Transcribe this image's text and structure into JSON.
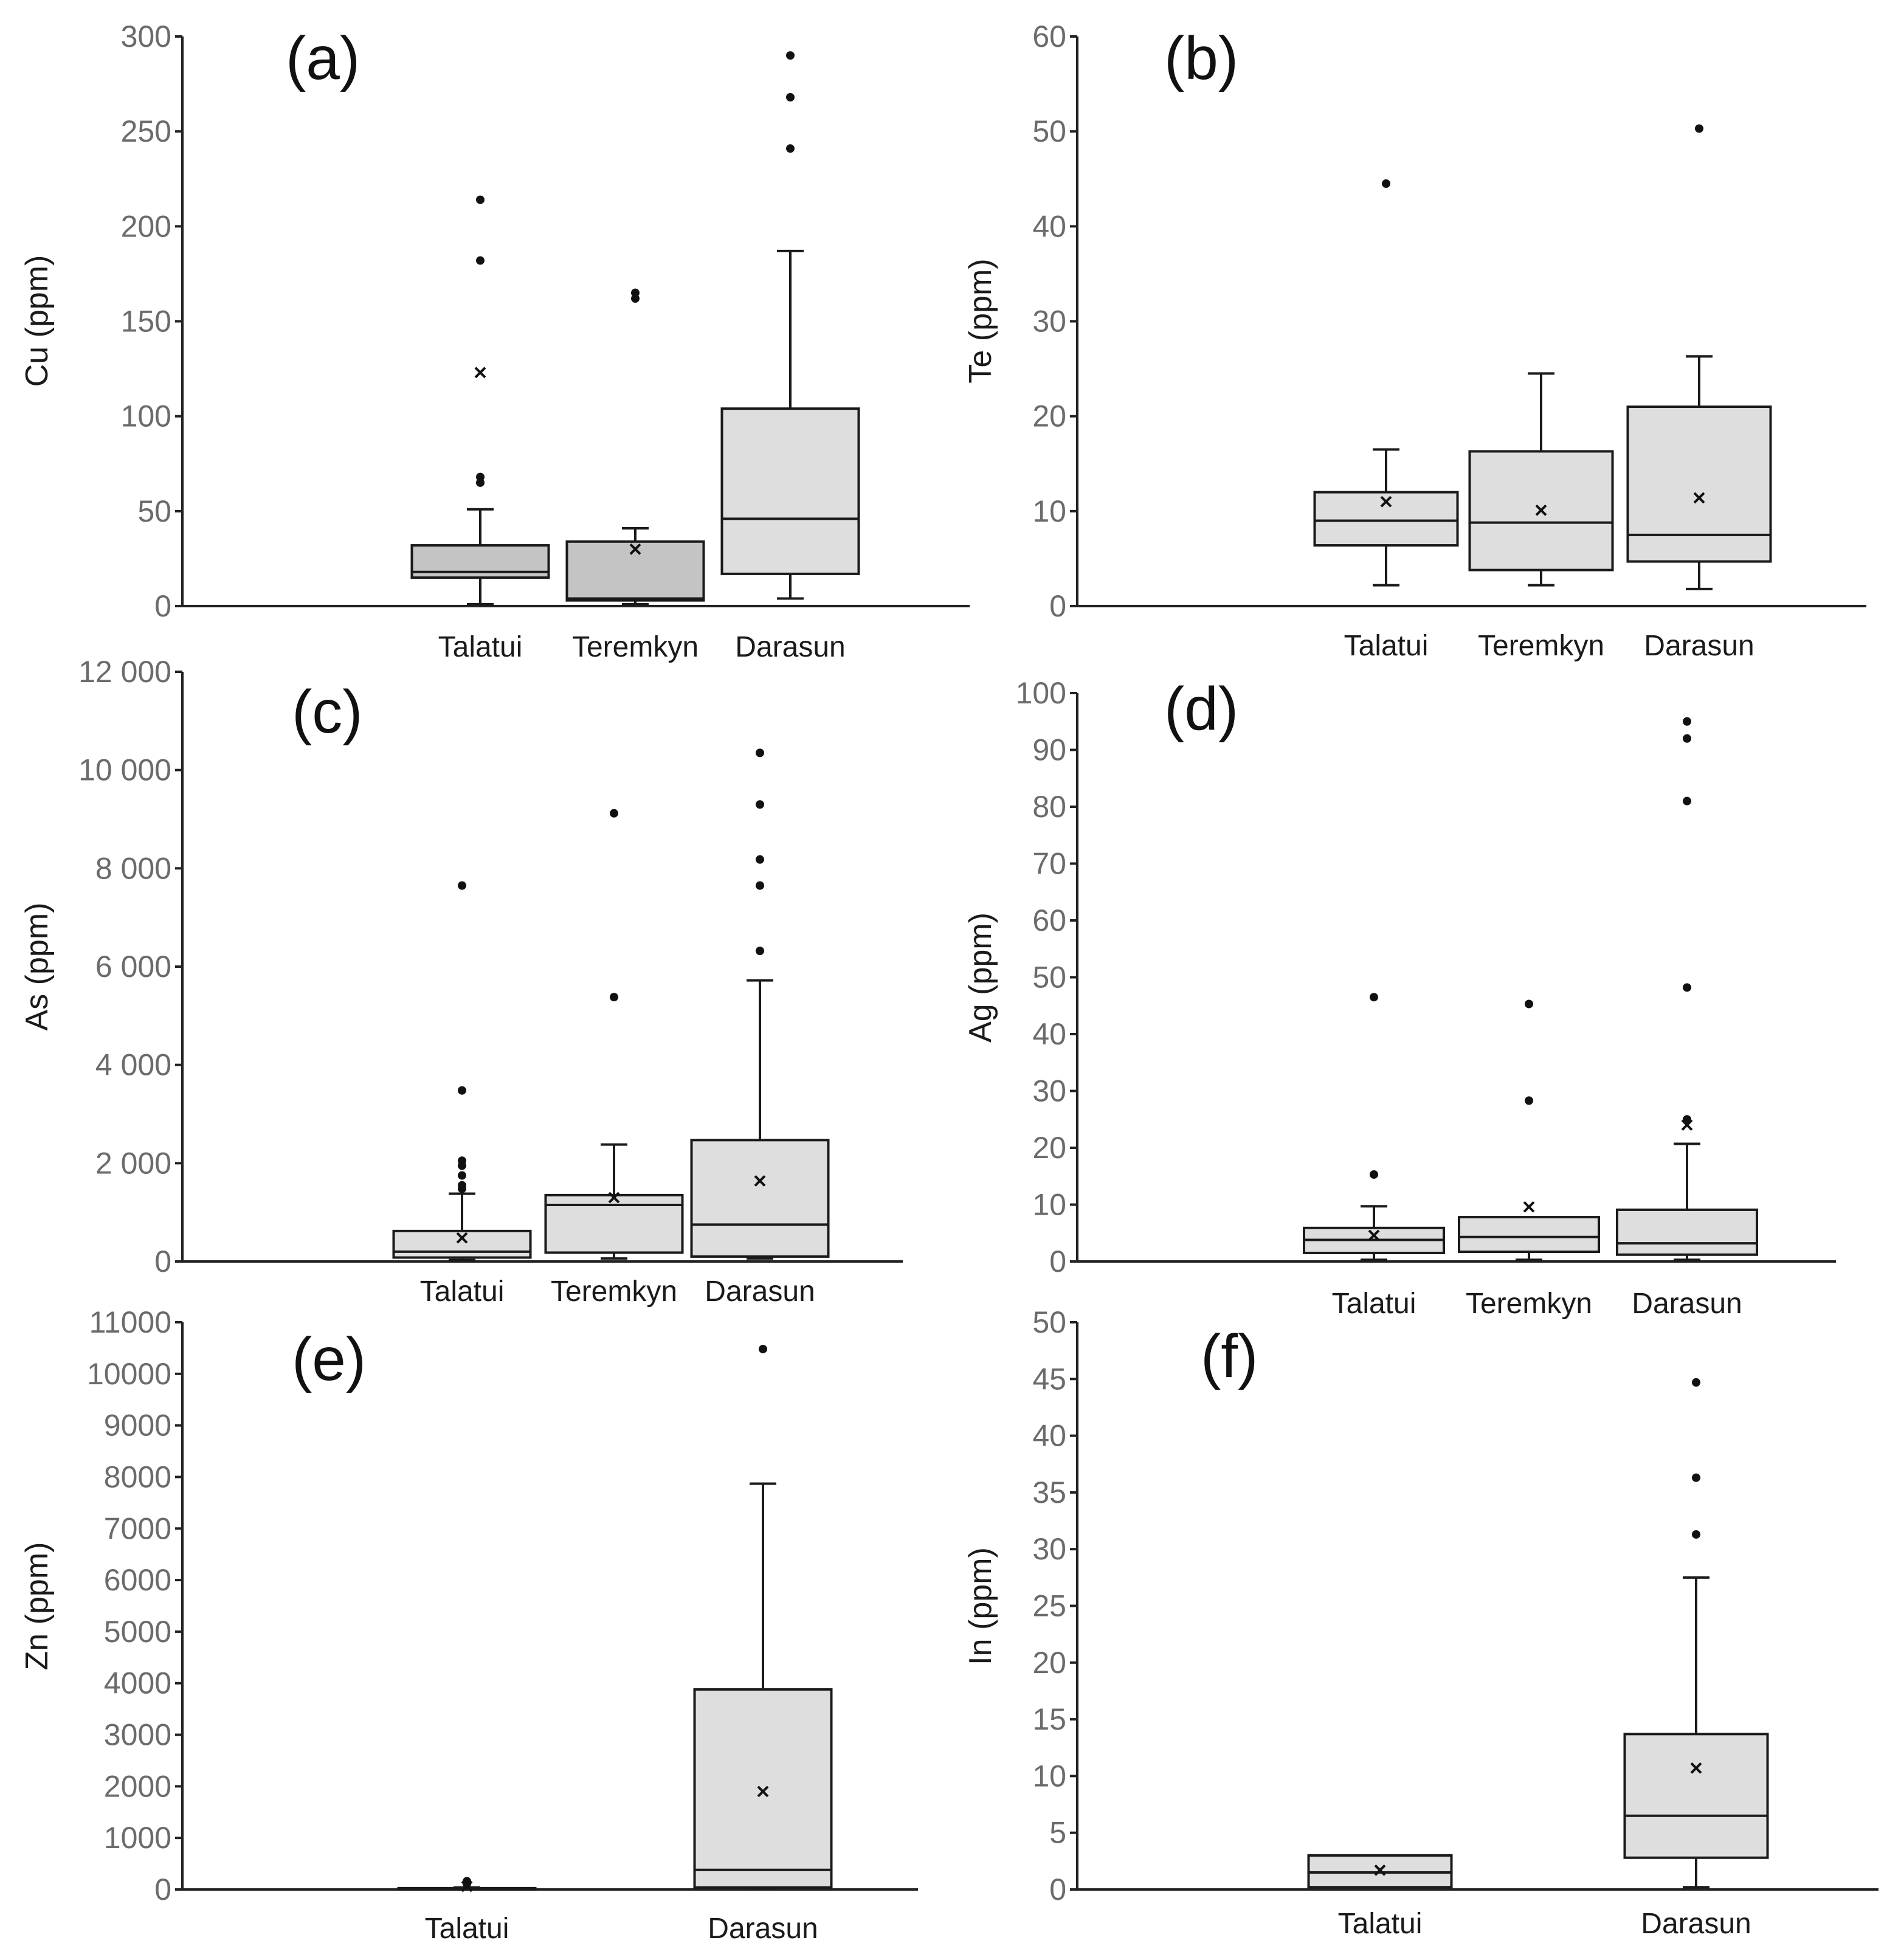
{
  "chart_data": [
    {
      "id": "a",
      "type": "box",
      "panel_label": "(a)",
      "ylabel": "Cu (ppm)",
      "ylim": [
        0,
        300
      ],
      "yticks": [
        0,
        50,
        100,
        150,
        200,
        250,
        300
      ],
      "ytick_labels": [
        "0",
        "50",
        "100",
        "150",
        "200",
        "250",
        "300"
      ],
      "categories": [
        "Talatui",
        "Teremkyn",
        "Darasun"
      ],
      "boxes": [
        {
          "name": "Talatui",
          "fill": "#c4c4c4",
          "whisker_low": 1,
          "q1": 15,
          "median": 18,
          "q3": 32,
          "whisker_high": 51,
          "mean": 123,
          "outliers": [
            65,
            68,
            182,
            214
          ]
        },
        {
          "name": "Teremkyn",
          "fill": "#c4c4c4",
          "whisker_low": 1,
          "q1": 3,
          "median": 4,
          "q3": 34,
          "whisker_high": 41,
          "mean": 30,
          "outliers": [
            162,
            165
          ]
        },
        {
          "name": "Darasun",
          "fill": "#dedede",
          "whisker_low": 4,
          "q1": 17,
          "median": 46,
          "q3": 104,
          "whisker_high": 187,
          "mean": null,
          "outliers": [
            241,
            268,
            290
          ]
        }
      ]
    },
    {
      "id": "b",
      "type": "box",
      "panel_label": "(b)",
      "ylabel": "Te (ppm)",
      "ylim": [
        0,
        60
      ],
      "yticks": [
        0,
        10,
        20,
        30,
        40,
        50,
        60
      ],
      "ytick_labels": [
        "0",
        "10",
        "20",
        "30",
        "40",
        "50",
        "60"
      ],
      "categories": [
        "Talatui",
        "Teremkyn",
        "Darasun"
      ],
      "boxes": [
        {
          "name": "Talatui",
          "fill": "#dedede",
          "whisker_low": 2.2,
          "q1": 6.4,
          "median": 9,
          "q3": 12,
          "whisker_high": 16.5,
          "mean": 11,
          "outliers": [
            44.5
          ]
        },
        {
          "name": "Teremkyn",
          "fill": "#dedede",
          "whisker_low": 2.2,
          "q1": 3.8,
          "median": 8.8,
          "q3": 16.3,
          "whisker_high": 24.5,
          "mean": 10.1,
          "outliers": []
        },
        {
          "name": "Darasun",
          "fill": "#dedede",
          "whisker_low": 1.8,
          "q1": 4.7,
          "median": 7.5,
          "q3": 21,
          "whisker_high": 26.3,
          "mean": 11.4,
          "outliers": [
            50.3
          ]
        }
      ]
    },
    {
      "id": "c",
      "type": "box",
      "panel_label": "(c)",
      "ylabel": "As (ppm)",
      "ylim": [
        0,
        12000
      ],
      "yticks": [
        0,
        2000,
        4000,
        6000,
        8000,
        10000,
        12000
      ],
      "ytick_labels": [
        "0",
        "2 000",
        "4 000",
        "6 000",
        "8 000",
        "10 000",
        "12 000"
      ],
      "categories": [
        "Talatui",
        "Teremkyn",
        "Darasun"
      ],
      "boxes": [
        {
          "name": "Talatui",
          "fill": "#dedede",
          "whisker_low": 30,
          "q1": 80,
          "median": 200,
          "q3": 620,
          "whisker_high": 1380,
          "mean": 480,
          "outliers": [
            1480,
            1550,
            1750,
            1950,
            2050,
            3480,
            7650
          ]
        },
        {
          "name": "Teremkyn",
          "fill": "#dedede",
          "whisker_low": 60,
          "q1": 180,
          "median": 1150,
          "q3": 1350,
          "whisker_high": 2380,
          "mean": 1300,
          "outliers": [
            5380,
            9120
          ]
        },
        {
          "name": "Darasun",
          "fill": "#dedede",
          "whisker_low": 60,
          "q1": 100,
          "median": 750,
          "q3": 2470,
          "whisker_high": 5720,
          "mean": 1640,
          "outliers": [
            6320,
            7650,
            8180,
            9300,
            10350
          ]
        }
      ]
    },
    {
      "id": "d",
      "type": "box",
      "panel_label": "(d)",
      "ylabel": "Ag (ppm)",
      "ylim": [
        0,
        100
      ],
      "yticks": [
        0,
        10,
        20,
        30,
        40,
        50,
        60,
        70,
        80,
        90,
        100
      ],
      "ytick_labels": [
        "0",
        "10",
        "20",
        "30",
        "40",
        "50",
        "60",
        "70",
        "80",
        "90",
        "100"
      ],
      "categories": [
        "Talatui",
        "Teremkyn",
        "Darasun"
      ],
      "boxes": [
        {
          "name": "Talatui",
          "fill": "#dedede",
          "whisker_low": 0.3,
          "q1": 1.5,
          "median": 3.8,
          "q3": 5.9,
          "whisker_high": 9.7,
          "mean": 4.6,
          "outliers": [
            15.3,
            46.5
          ]
        },
        {
          "name": "Teremkyn",
          "fill": "#dedede",
          "whisker_low": 0.3,
          "q1": 1.7,
          "median": 4.3,
          "q3": 7.8,
          "whisker_high": null,
          "mean": 9.6,
          "outliers": [
            28.3,
            45.3
          ]
        },
        {
          "name": "Darasun",
          "fill": "#dedede",
          "whisker_low": 0.3,
          "q1": 1.2,
          "median": 3.2,
          "q3": 9.1,
          "whisker_high": 20.7,
          "mean": 24,
          "outliers": [
            25,
            48.2,
            81,
            92,
            95
          ]
        }
      ]
    },
    {
      "id": "e",
      "type": "box",
      "panel_label": "(e)",
      "ylabel": "Zn (ppm)",
      "ylim": [
        0,
        11000
      ],
      "yticks": [
        0,
        1000,
        2000,
        3000,
        4000,
        5000,
        6000,
        7000,
        8000,
        9000,
        10000,
        11000
      ],
      "ytick_labels": [
        "0",
        "1000",
        "2000",
        "3000",
        "4000",
        "5000",
        "6000",
        "7000",
        "8000",
        "9000",
        "10000",
        "11000"
      ],
      "categories": [
        "Talatui",
        "Darasun"
      ],
      "boxes": [
        {
          "name": "Talatui",
          "fill": "#dedede",
          "whisker_low": 0,
          "q1": 5,
          "median": 15,
          "q3": 25,
          "whisker_high": 40,
          "mean": 60,
          "outliers": [
            110,
            160
          ]
        },
        {
          "name": "Darasun",
          "fill": "#dedede",
          "whisker_low": 20,
          "q1": 40,
          "median": 380,
          "q3": 3880,
          "whisker_high": 7870,
          "mean": 1900,
          "outliers": [
            10480
          ]
        }
      ]
    },
    {
      "id": "f",
      "type": "box",
      "panel_label": "(f)",
      "ylabel": "In (ppm)",
      "ylim": [
        0,
        50
      ],
      "yticks": [
        0,
        5,
        10,
        15,
        20,
        25,
        30,
        35,
        40,
        45,
        50
      ],
      "ytick_labels": [
        "0",
        "5",
        "10",
        "15",
        "20",
        "25",
        "30",
        "35",
        "40",
        "45",
        "50"
      ],
      "categories": [
        "Talatui",
        "Darasun"
      ],
      "boxes": [
        {
          "name": "Talatui",
          "fill": "#dedede",
          "whisker_low": null,
          "q1": 0.2,
          "median": 1.5,
          "q3": 3,
          "whisker_high": null,
          "mean": 1.7,
          "outliers": []
        },
        {
          "name": "Darasun",
          "fill": "#dedede",
          "whisker_low": 0.2,
          "q1": 2.8,
          "median": 6.5,
          "q3": 13.7,
          "whisker_high": 27.5,
          "mean": 10.7,
          "outliers": [
            31.3,
            36.3,
            44.7
          ]
        }
      ]
    }
  ]
}
